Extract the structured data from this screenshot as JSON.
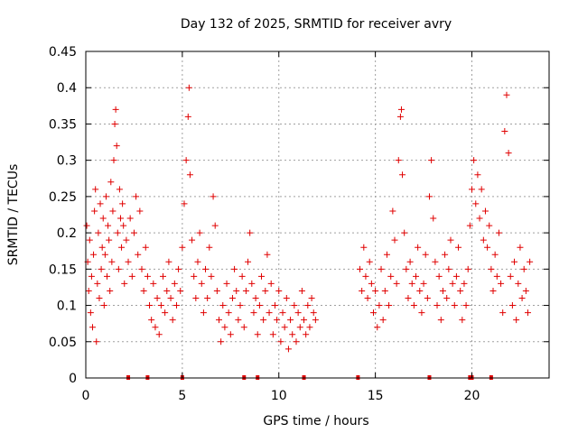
{
  "chart_data": {
    "type": "scatter",
    "title": "Day 132 of 2025, SRMTID for receiver avry",
    "xlabel": "GPS time / hours",
    "ylabel": "SRMTID / TECUs",
    "xlim": [
      0,
      24
    ],
    "ylim": [
      0,
      0.45
    ],
    "xticks": [
      0,
      5,
      10,
      15,
      20
    ],
    "xtick_labels": [
      "0",
      "5",
      "10",
      "15",
      "20"
    ],
    "yticks": [
      0,
      0.05,
      0.1,
      0.15,
      0.2,
      0.25,
      0.3,
      0.35,
      0.4,
      0.45
    ],
    "ytick_labels": [
      "0",
      "0.05",
      "0.1",
      "0.15",
      "0.2",
      "0.25",
      "0.3",
      "0.35",
      "0.4",
      "0.45"
    ],
    "grid": true,
    "marker": "+",
    "color": "#e00000",
    "data_gap_hours": [
      12.0,
      14.1
    ],
    "zero_value_times": [
      2.2,
      3.2,
      5.0,
      8.2,
      8.9,
      11.3,
      14.1,
      17.8,
      19.9,
      20.0,
      21.0
    ],
    "series": [
      {
        "name": "SRMTID",
        "points": [
          [
            0.05,
            0.21
          ],
          [
            0.1,
            0.16
          ],
          [
            0.15,
            0.12
          ],
          [
            0.2,
            0.19
          ],
          [
            0.25,
            0.09
          ],
          [
            0.3,
            0.14
          ],
          [
            0.35,
            0.07
          ],
          [
            0.4,
            0.17
          ],
          [
            0.45,
            0.23
          ],
          [
            0.5,
            0.26
          ],
          [
            0.55,
            0.05
          ],
          [
            0.6,
            0.13
          ],
          [
            0.65,
            0.2
          ],
          [
            0.7,
            0.11
          ],
          [
            0.75,
            0.24
          ],
          [
            0.8,
            0.15
          ],
          [
            0.85,
            0.18
          ],
          [
            0.9,
            0.22
          ],
          [
            0.95,
            0.1
          ],
          [
            1.0,
            0.17
          ],
          [
            1.05,
            0.25
          ],
          [
            1.1,
            0.14
          ],
          [
            1.15,
            0.21
          ],
          [
            1.2,
            0.19
          ],
          [
            1.25,
            0.12
          ],
          [
            1.3,
            0.27
          ],
          [
            1.35,
            0.16
          ],
          [
            1.4,
            0.23
          ],
          [
            1.45,
            0.3
          ],
          [
            1.5,
            0.35
          ],
          [
            1.55,
            0.37
          ],
          [
            1.6,
            0.32
          ],
          [
            1.65,
            0.2
          ],
          [
            1.7,
            0.15
          ],
          [
            1.75,
            0.26
          ],
          [
            1.8,
            0.22
          ],
          [
            1.85,
            0.18
          ],
          [
            1.9,
            0.24
          ],
          [
            1.95,
            0.21
          ],
          [
            2.0,
            0.13
          ],
          [
            2.1,
            0.19
          ],
          [
            2.2,
            0.16
          ],
          [
            2.3,
            0.22
          ],
          [
            2.4,
            0.14
          ],
          [
            2.5,
            0.2
          ],
          [
            2.6,
            0.25
          ],
          [
            2.7,
            0.17
          ],
          [
            2.8,
            0.23
          ],
          [
            2.9,
            0.15
          ],
          [
            3.0,
            0.12
          ],
          [
            3.1,
            0.18
          ],
          [
            3.2,
            0.14
          ],
          [
            3.3,
            0.1
          ],
          [
            3.4,
            0.08
          ],
          [
            3.5,
            0.13
          ],
          [
            3.6,
            0.07
          ],
          [
            3.7,
            0.11
          ],
          [
            3.8,
            0.06
          ],
          [
            3.9,
            0.1
          ],
          [
            4.0,
            0.14
          ],
          [
            4.1,
            0.09
          ],
          [
            4.2,
            0.12
          ],
          [
            4.3,
            0.16
          ],
          [
            4.4,
            0.11
          ],
          [
            4.5,
            0.08
          ],
          [
            4.6,
            0.13
          ],
          [
            4.7,
            0.1
          ],
          [
            4.8,
            0.15
          ],
          [
            4.9,
            0.12
          ],
          [
            5.0,
            0.18
          ],
          [
            5.1,
            0.24
          ],
          [
            5.2,
            0.3
          ],
          [
            5.3,
            0.36
          ],
          [
            5.35,
            0.4
          ],
          [
            5.4,
            0.28
          ],
          [
            5.5,
            0.19
          ],
          [
            5.6,
            0.14
          ],
          [
            5.7,
            0.11
          ],
          [
            5.8,
            0.16
          ],
          [
            5.9,
            0.2
          ],
          [
            6.0,
            0.13
          ],
          [
            6.1,
            0.09
          ],
          [
            6.2,
            0.15
          ],
          [
            6.3,
            0.11
          ],
          [
            6.4,
            0.18
          ],
          [
            6.5,
            0.14
          ],
          [
            6.6,
            0.25
          ],
          [
            6.7,
            0.21
          ],
          [
            6.8,
            0.12
          ],
          [
            6.9,
            0.08
          ],
          [
            7.0,
            0.05
          ],
          [
            7.1,
            0.1
          ],
          [
            7.2,
            0.07
          ],
          [
            7.3,
            0.13
          ],
          [
            7.4,
            0.09
          ],
          [
            7.5,
            0.06
          ],
          [
            7.6,
            0.11
          ],
          [
            7.7,
            0.15
          ],
          [
            7.8,
            0.12
          ],
          [
            7.9,
            0.08
          ],
          [
            8.0,
            0.1
          ],
          [
            8.1,
            0.14
          ],
          [
            8.2,
            0.07
          ],
          [
            8.3,
            0.12
          ],
          [
            8.4,
            0.16
          ],
          [
            8.5,
            0.2
          ],
          [
            8.6,
            0.13
          ],
          [
            8.7,
            0.09
          ],
          [
            8.8,
            0.11
          ],
          [
            8.9,
            0.06
          ],
          [
            9.0,
            0.1
          ],
          [
            9.1,
            0.14
          ],
          [
            9.2,
            0.08
          ],
          [
            9.3,
            0.12
          ],
          [
            9.4,
            0.17
          ],
          [
            9.5,
            0.09
          ],
          [
            9.6,
            0.13
          ],
          [
            9.7,
            0.06
          ],
          [
            9.8,
            0.1
          ],
          [
            9.9,
            0.08
          ],
          [
            10.0,
            0.12
          ],
          [
            10.1,
            0.05
          ],
          [
            10.2,
            0.09
          ],
          [
            10.3,
            0.07
          ],
          [
            10.4,
            0.11
          ],
          [
            10.5,
            0.04
          ],
          [
            10.6,
            0.08
          ],
          [
            10.7,
            0.06
          ],
          [
            10.8,
            0.1
          ],
          [
            10.9,
            0.05
          ],
          [
            11.0,
            0.09
          ],
          [
            11.1,
            0.07
          ],
          [
            11.2,
            0.12
          ],
          [
            11.3,
            0.08
          ],
          [
            11.4,
            0.06
          ],
          [
            11.5,
            0.1
          ],
          [
            11.6,
            0.07
          ],
          [
            11.7,
            0.11
          ],
          [
            11.8,
            0.09
          ],
          [
            11.9,
            0.08
          ],
          [
            14.2,
            0.15
          ],
          [
            14.3,
            0.12
          ],
          [
            14.4,
            0.18
          ],
          [
            14.5,
            0.14
          ],
          [
            14.6,
            0.11
          ],
          [
            14.7,
            0.16
          ],
          [
            14.8,
            0.13
          ],
          [
            14.9,
            0.09
          ],
          [
            15.0,
            0.12
          ],
          [
            15.1,
            0.07
          ],
          [
            15.2,
            0.1
          ],
          [
            15.3,
            0.15
          ],
          [
            15.4,
            0.08
          ],
          [
            15.5,
            0.12
          ],
          [
            15.6,
            0.17
          ],
          [
            15.7,
            0.1
          ],
          [
            15.8,
            0.14
          ],
          [
            15.9,
            0.23
          ],
          [
            16.0,
            0.19
          ],
          [
            16.1,
            0.13
          ],
          [
            16.2,
            0.3
          ],
          [
            16.3,
            0.36
          ],
          [
            16.35,
            0.37
          ],
          [
            16.4,
            0.28
          ],
          [
            16.5,
            0.2
          ],
          [
            16.6,
            0.15
          ],
          [
            16.7,
            0.11
          ],
          [
            16.8,
            0.16
          ],
          [
            16.9,
            0.13
          ],
          [
            17.0,
            0.1
          ],
          [
            17.1,
            0.14
          ],
          [
            17.2,
            0.18
          ],
          [
            17.3,
            0.12
          ],
          [
            17.4,
            0.09
          ],
          [
            17.5,
            0.13
          ],
          [
            17.6,
            0.17
          ],
          [
            17.7,
            0.11
          ],
          [
            17.8,
            0.25
          ],
          [
            17.9,
            0.3
          ],
          [
            18.0,
            0.22
          ],
          [
            18.1,
            0.16
          ],
          [
            18.2,
            0.1
          ],
          [
            18.3,
            0.14
          ],
          [
            18.4,
            0.08
          ],
          [
            18.5,
            0.12
          ],
          [
            18.6,
            0.17
          ],
          [
            18.7,
            0.11
          ],
          [
            18.8,
            0.15
          ],
          [
            18.9,
            0.19
          ],
          [
            19.0,
            0.13
          ],
          [
            19.1,
            0.1
          ],
          [
            19.2,
            0.14
          ],
          [
            19.3,
            0.18
          ],
          [
            19.4,
            0.12
          ],
          [
            19.5,
            0.08
          ],
          [
            19.6,
            0.13
          ],
          [
            19.7,
            0.1
          ],
          [
            19.8,
            0.15
          ],
          [
            19.9,
            0.21
          ],
          [
            20.0,
            0.26
          ],
          [
            20.1,
            0.3
          ],
          [
            20.2,
            0.24
          ],
          [
            20.3,
            0.28
          ],
          [
            20.4,
            0.22
          ],
          [
            20.5,
            0.26
          ],
          [
            20.6,
            0.19
          ],
          [
            20.7,
            0.23
          ],
          [
            20.8,
            0.18
          ],
          [
            20.9,
            0.21
          ],
          [
            21.0,
            0.15
          ],
          [
            21.1,
            0.12
          ],
          [
            21.2,
            0.17
          ],
          [
            21.3,
            0.14
          ],
          [
            21.4,
            0.2
          ],
          [
            21.5,
            0.13
          ],
          [
            21.6,
            0.09
          ],
          [
            21.7,
            0.34
          ],
          [
            21.8,
            0.39
          ],
          [
            21.9,
            0.31
          ],
          [
            22.0,
            0.14
          ],
          [
            22.1,
            0.1
          ],
          [
            22.2,
            0.16
          ],
          [
            22.3,
            0.08
          ],
          [
            22.4,
            0.13
          ],
          [
            22.5,
            0.18
          ],
          [
            22.6,
            0.11
          ],
          [
            22.7,
            0.15
          ],
          [
            22.8,
            0.12
          ],
          [
            22.9,
            0.09
          ],
          [
            23.0,
            0.16
          ]
        ]
      }
    ]
  }
}
